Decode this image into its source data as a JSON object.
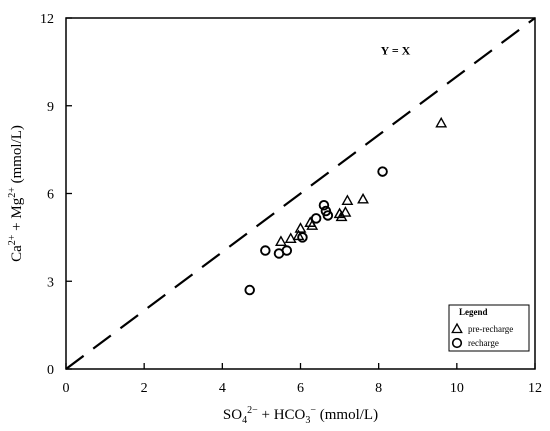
{
  "chart_data": {
    "type": "scatter",
    "xlabel_parts": {
      "a": "SO",
      "a_sub": "4",
      "a_sup": "2−",
      "plus": " + HCO",
      "b_sub": "3",
      "b_sup": "−",
      "unit": " (mmol/L)"
    },
    "ylabel_parts": {
      "a": "Ca",
      "a_sup": "2+",
      "plus": " + Mg",
      "b_sup": "2+",
      "unit": " (mmol/L)"
    },
    "xlim": [
      0,
      12
    ],
    "ylim": [
      0,
      12
    ],
    "xticks": [
      0,
      2,
      4,
      6,
      8,
      10,
      12
    ],
    "yticks": [
      0,
      3,
      6,
      9,
      12
    ],
    "grid": false,
    "reference_line": {
      "label": "Y = X",
      "slope": 1,
      "intercept": 0,
      "style": "dashed"
    },
    "legend": {
      "title": "Legend",
      "placement": "bottom-right",
      "entries": [
        {
          "name": "pre-recharge",
          "marker": "triangle"
        },
        {
          "name": "recharge",
          "marker": "circle"
        }
      ]
    },
    "series": [
      {
        "name": "pre-recharge",
        "marker": "triangle",
        "points": [
          [
            5.5,
            4.35
          ],
          [
            5.75,
            4.45
          ],
          [
            5.95,
            4.55
          ],
          [
            6.0,
            4.8
          ],
          [
            6.25,
            5.0
          ],
          [
            6.3,
            4.9
          ],
          [
            7.0,
            5.3
          ],
          [
            7.05,
            5.2
          ],
          [
            7.15,
            5.35
          ],
          [
            7.2,
            5.75
          ],
          [
            7.6,
            5.8
          ],
          [
            9.6,
            8.4
          ]
        ]
      },
      {
        "name": "recharge",
        "marker": "circle",
        "points": [
          [
            4.7,
            2.7
          ],
          [
            5.1,
            4.05
          ],
          [
            5.45,
            3.95
          ],
          [
            5.65,
            4.05
          ],
          [
            6.05,
            4.5
          ],
          [
            6.4,
            5.15
          ],
          [
            6.6,
            5.6
          ],
          [
            6.65,
            5.4
          ],
          [
            6.7,
            5.25
          ],
          [
            8.1,
            6.75
          ]
        ]
      }
    ]
  }
}
